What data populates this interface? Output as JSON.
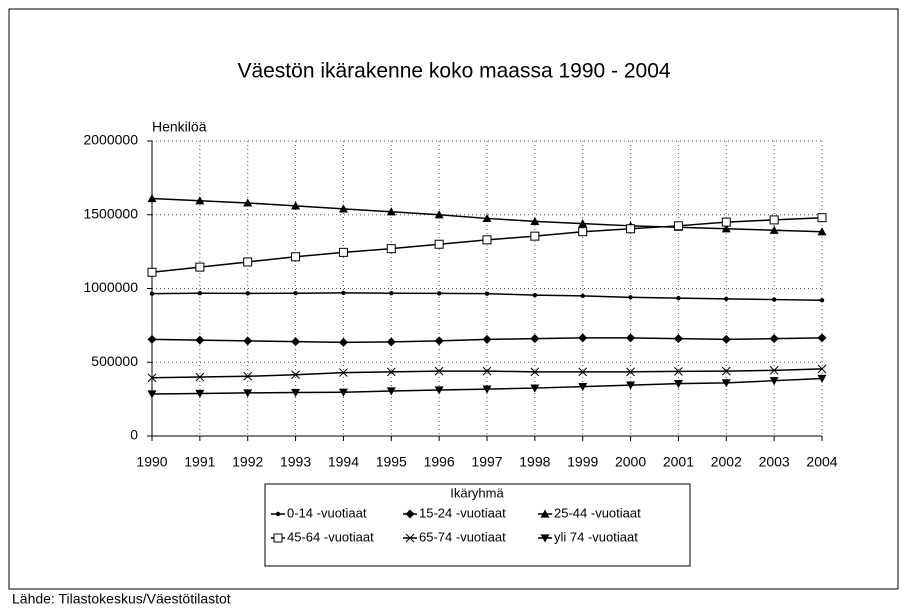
{
  "chart_data": {
    "type": "line",
    "title": "Väestön ikärakenne koko maassa 1990 - 2004",
    "y_label": "Henkilöä",
    "legend_title": "Ikäryhmä",
    "source": "Lähde: Tilastokeskus/Väestötilastot",
    "categories": [
      "1990",
      "1991",
      "1992",
      "1993",
      "1994",
      "1995",
      "1996",
      "1997",
      "1998",
      "1999",
      "2000",
      "2001",
      "2002",
      "2003",
      "2004"
    ],
    "ylim": [
      0,
      2000000
    ],
    "yticks": [
      0,
      500000,
      1000000,
      1500000,
      2000000
    ],
    "grid": true,
    "series": [
      {
        "name": "0-14 -vuotiaat",
        "color": "#000000",
        "marker": "dot",
        "values": [
          965000,
          968000,
          967000,
          968000,
          970000,
          968000,
          967000,
          965000,
          955000,
          950000,
          940000,
          935000,
          930000,
          925000,
          920000
        ]
      },
      {
        "name": "15-24 -vuotiaat",
        "color": "#000000",
        "marker": "diamond",
        "values": [
          655000,
          650000,
          645000,
          640000,
          635000,
          638000,
          645000,
          655000,
          660000,
          665000,
          665000,
          660000,
          655000,
          660000,
          665000
        ]
      },
      {
        "name": "25-44 -vuotiaat",
        "color": "#000000",
        "marker": "triangle-up",
        "values": [
          1610000,
          1595000,
          1580000,
          1560000,
          1540000,
          1520000,
          1500000,
          1475000,
          1455000,
          1440000,
          1425000,
          1415000,
          1405000,
          1395000,
          1385000
        ]
      },
      {
        "name": "45-64 -vuotiaat",
        "color": "#000000",
        "marker": "square-open",
        "values": [
          1110000,
          1145000,
          1180000,
          1215000,
          1245000,
          1270000,
          1300000,
          1330000,
          1355000,
          1385000,
          1405000,
          1425000,
          1450000,
          1465000,
          1480000
        ]
      },
      {
        "name": "65-74 -vuotiaat",
        "color": "#000000",
        "marker": "cross",
        "values": [
          395000,
          400000,
          405000,
          415000,
          430000,
          435000,
          440000,
          440000,
          435000,
          435000,
          435000,
          438000,
          440000,
          445000,
          455000
        ]
      },
      {
        "name": "yli 74 -vuotiaat",
        "color": "#000000",
        "marker": "triangle-down",
        "values": [
          285000,
          288000,
          292000,
          295000,
          297000,
          305000,
          312000,
          318000,
          325000,
          335000,
          345000,
          355000,
          360000,
          375000,
          390000
        ]
      }
    ]
  }
}
